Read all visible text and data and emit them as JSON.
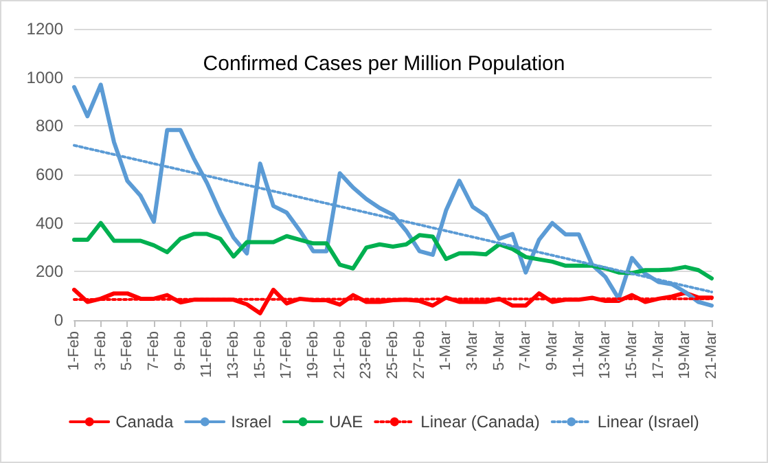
{
  "chart_data": {
    "type": "line",
    "title": "Confirmed Cases per Million Population",
    "categories": [
      "1-Feb",
      null,
      "3-Feb",
      null,
      "5-Feb",
      null,
      "7-Feb",
      null,
      "9-Feb",
      null,
      "11-Feb",
      null,
      "13-Feb",
      null,
      "15-Feb",
      null,
      "17-Feb",
      null,
      "19-Feb",
      null,
      "21-Feb",
      null,
      "23-Feb",
      null,
      "25-Feb",
      null,
      "27-Feb",
      null,
      "1-Mar",
      null,
      "3-Mar",
      null,
      "5-Mar",
      null,
      "7-Mar",
      null,
      "9-Mar",
      null,
      "11-Mar",
      null,
      "13-Mar",
      null,
      "15-Mar",
      null,
      "17-Mar",
      null,
      "19-Mar",
      null,
      "21-Mar"
    ],
    "series": [
      {
        "name": "Canada",
        "color": "#ff0000",
        "values": [
          125,
          75,
          88,
          110,
          110,
          88,
          88,
          103,
          73,
          84,
          84,
          84,
          84,
          65,
          28,
          125,
          69,
          88,
          82,
          82,
          64,
          103,
          75,
          75,
          82,
          84,
          79,
          60,
          93,
          75,
          75,
          75,
          88,
          60,
          60,
          110,
          75,
          84,
          84,
          92,
          79,
          79,
          103,
          75,
          88,
          97,
          112,
          93,
          93
        ]
      },
      {
        "name": "Israel",
        "color": "#5b9bd5",
        "values": [
          960,
          840,
          970,
          733,
          574,
          512,
          405,
          783,
          783,
          667,
          565,
          443,
          340,
          275,
          645,
          470,
          443,
          368,
          284,
          284,
          605,
          546,
          499,
          462,
          434,
          368,
          284,
          269,
          452,
          574,
          467,
          430,
          335,
          355,
          196,
          331,
          400,
          353,
          353,
          228,
          178,
          88,
          256,
          191,
          157,
          148,
          116,
          75,
          60
        ]
      },
      {
        "name": "UAE",
        "color": "#00b050",
        "values": [
          331,
          331,
          400,
          327,
          327,
          327,
          308,
          280,
          335,
          355,
          355,
          335,
          262,
          321,
          321,
          321,
          346,
          331,
          316,
          316,
          228,
          213,
          299,
          312,
          303,
          312,
          350,
          344,
          252,
          275,
          275,
          271,
          312,
          293,
          260,
          250,
          241,
          224,
          224,
          224,
          213,
          196,
          194,
          206,
          206,
          209,
          219,
          206,
          172
        ]
      },
      {
        "name": "Linear (Canada)",
        "color": "#ff0000",
        "line_style": "dotted",
        "x": [
          "1-Feb",
          "21-Mar"
        ],
        "values": [
          85,
          88
        ]
      },
      {
        "name": "Linear (Israel)",
        "color": "#5b9bd5",
        "line_style": "dotted",
        "x": [
          "1-Feb",
          "21-Mar"
        ],
        "values": [
          720,
          116
        ]
      }
    ],
    "ylim": [
      0,
      1200
    ],
    "yticks": [
      0,
      200,
      400,
      600,
      800,
      1000,
      1200
    ],
    "grid": "y",
    "legend": "bottom",
    "marker": "none",
    "line_style": "solid"
  }
}
